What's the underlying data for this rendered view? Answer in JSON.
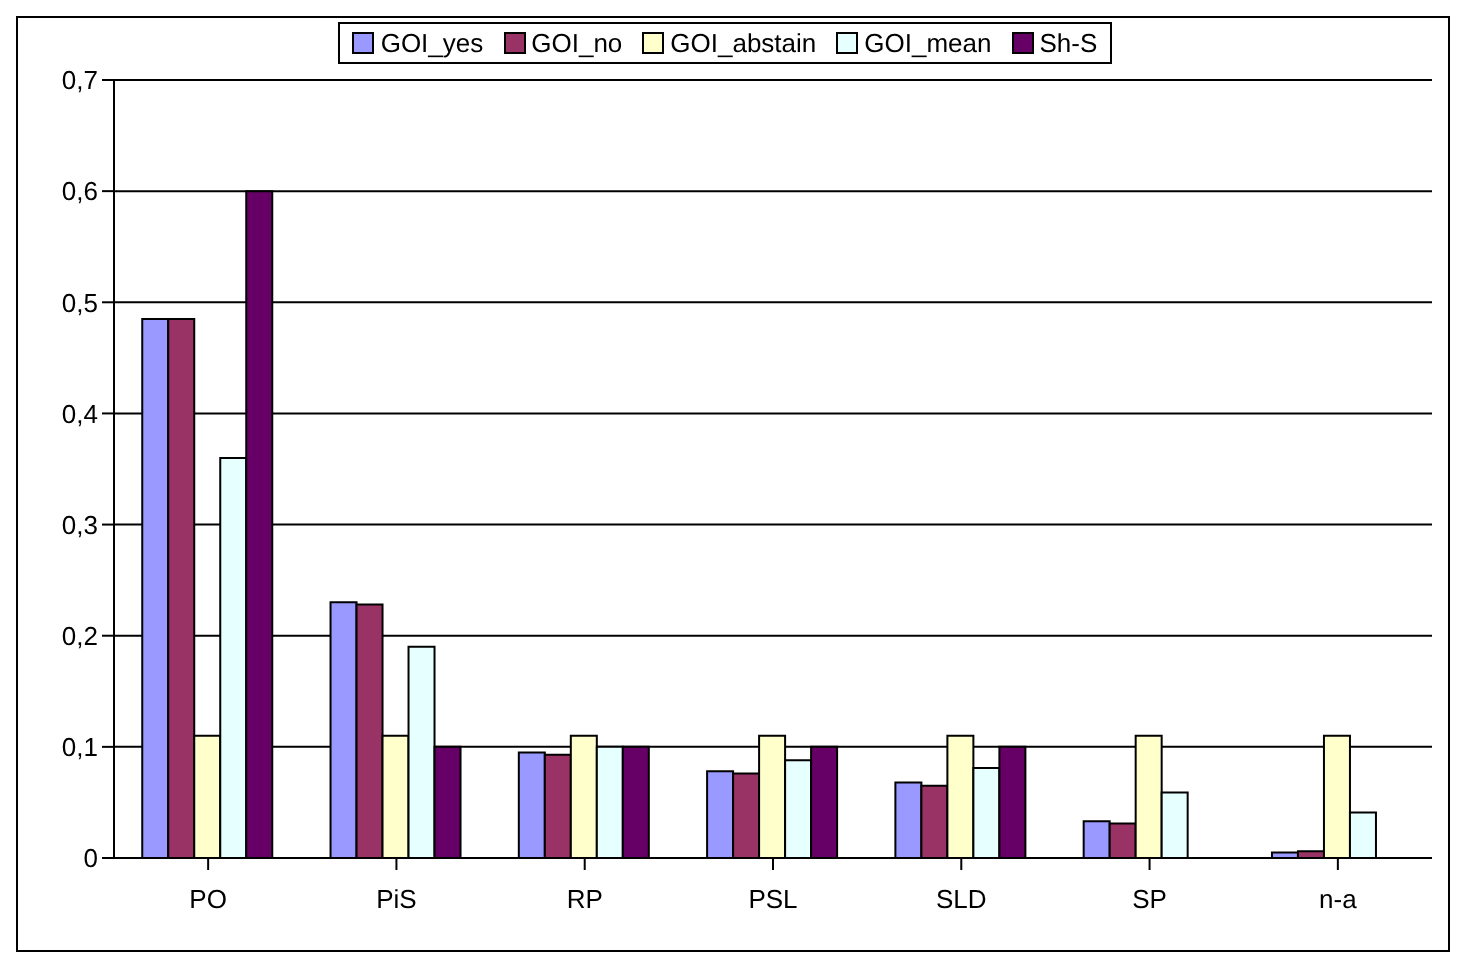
{
  "chart_data": {
    "type": "bar",
    "categories": [
      "PO",
      "PiS",
      "RP",
      "PSL",
      "SLD",
      "SP",
      "n-a"
    ],
    "series": [
      {
        "name": "GOI_yes",
        "color": "#9999ff",
        "values": [
          0.485,
          0.23,
          0.095,
          0.078,
          0.068,
          0.033,
          0.005
        ]
      },
      {
        "name": "GOI_no",
        "color": "#993366",
        "values": [
          0.485,
          0.228,
          0.093,
          0.076,
          0.065,
          0.031,
          0.006
        ]
      },
      {
        "name": "GOI_abstain",
        "color": "#ffffcc",
        "values": [
          0.11,
          0.11,
          0.11,
          0.11,
          0.11,
          0.11,
          0.11
        ]
      },
      {
        "name": "GOI_mean",
        "color": "#e6ffff",
        "values": [
          0.36,
          0.19,
          0.1,
          0.088,
          0.081,
          0.059,
          0.041
        ]
      },
      {
        "name": "Sh-S",
        "color": "#660066",
        "values": [
          0.6,
          0.1,
          0.1,
          0.1,
          0.1,
          0,
          0
        ]
      }
    ],
    "ylim": [
      0,
      0.7
    ],
    "yticks": [
      {
        "value": 0,
        "label": "0"
      },
      {
        "value": 0.1,
        "label": "0,1"
      },
      {
        "value": 0.2,
        "label": "0,2"
      },
      {
        "value": 0.3,
        "label": "0,3"
      },
      {
        "value": 0.4,
        "label": "0,4"
      },
      {
        "value": 0.5,
        "label": "0,5"
      },
      {
        "value": 0.6,
        "label": "0,6"
      },
      {
        "value": 0.7,
        "label": "0,7"
      }
    ],
    "grid": "y",
    "legend": "top"
  }
}
